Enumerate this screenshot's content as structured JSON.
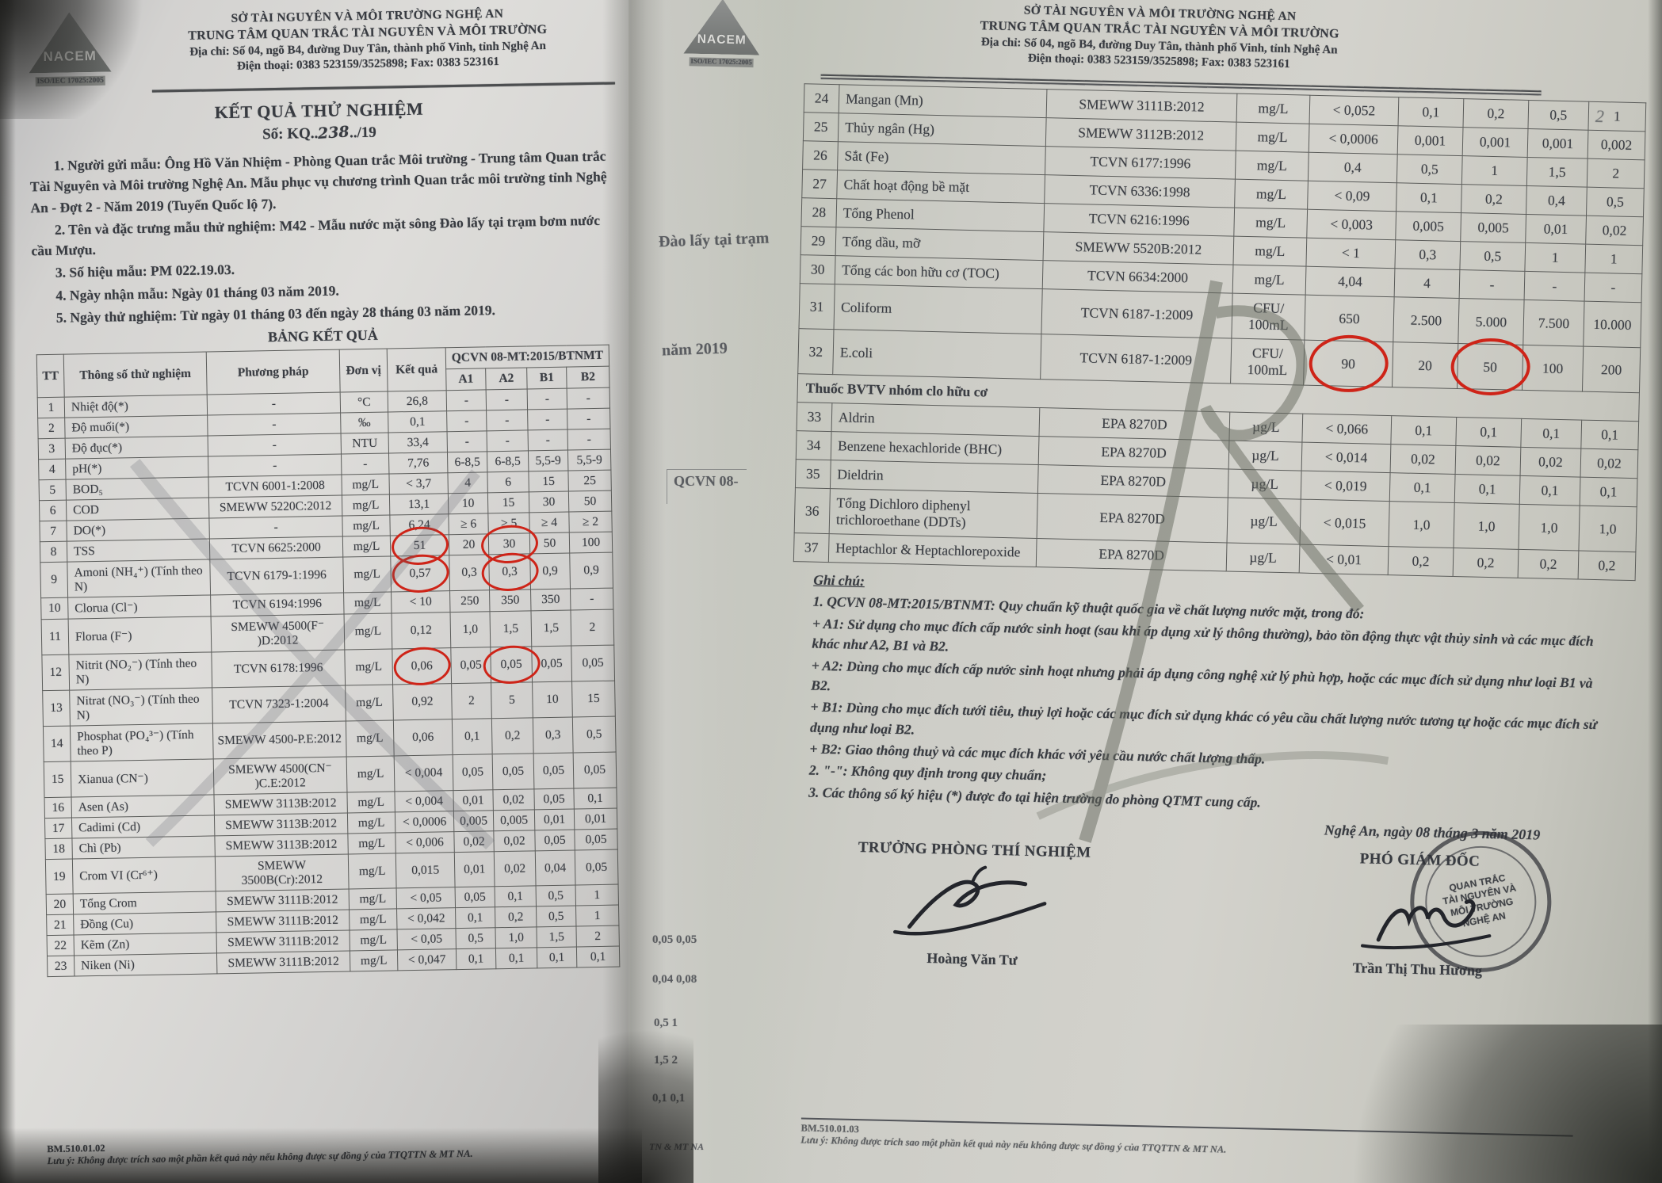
{
  "page_label": "2",
  "left_page": {
    "header": {
      "logo_text": "NACEM",
      "logo_iso": "ISO/IEC 17025:2005",
      "org1": "SỞ TÀI NGUYÊN VÀ MÔI TRƯỜNG NGHỆ AN",
      "org2": "TRUNG TÂM QUAN TRẮC TÀI NGUYÊN VÀ MÔI TRƯỜNG",
      "address": "Địa chỉ: Số 04, ngõ B4, đường Duy Tân, thành phố Vinh, tỉnh Nghệ An",
      "phone": "Điện thoại: 0383 523159/3525898;    Fax: 0383 523161"
    },
    "title": "KẾT QUẢ THỬ NGHIỆM",
    "doc_no": {
      "prefix": "Số: KQ..",
      "hand": "238",
      "suffix": "../19"
    },
    "intro": [
      "1. Người gửi mẫu: Ông Hồ Văn Nhiệm - Phòng Quan trắc Môi trường - Trung tâm Quan trắc Tài Nguyên và Môi trường Nghệ An. Mẫu phục vụ chương trình Quan trắc môi trường tỉnh Nghệ An - Đợt 2 - Năm 2019 (Tuyến Quốc lộ 7).",
      "2. Tên và đặc trưng mẫu thử nghiệm: M42 - Mẫu nước mặt sông Đào lấy tại trạm bơm nước cầu Mượu.",
      "3. Số hiệu mẫu: PM 022.19.03.",
      "4. Ngày nhận mẫu: Ngày 01 tháng 03 năm 2019.",
      "5. Ngày thử nghiệm: Từ ngày 01 tháng 03 đến ngày 28 tháng 03 năm 2019."
    ],
    "table_title": "BẢNG KẾT QUẢ",
    "table": {
      "h": {
        "tt": "TT",
        "p": "Thông số thử nghiệm",
        "m": "Phương pháp",
        "u": "Đơn vị",
        "r": "Kết quả",
        "q": "QCVN 08-MT:2015/BTNMT"
      },
      "subcols": [
        "A1",
        "A2",
        "B1",
        "B2"
      ],
      "rows": [
        {
          "tt": "1",
          "p": "Nhiệt độ(*)",
          "m": "-",
          "u": "°C",
          "r": "26,8",
          "a1": "-",
          "a2": "-",
          "b1": "-",
          "b2": "-"
        },
        {
          "tt": "2",
          "p": "Độ muối(*)",
          "m": "-",
          "u": "‰",
          "r": "0,1",
          "a1": "-",
          "a2": "-",
          "b1": "-",
          "b2": "-"
        },
        {
          "tt": "3",
          "p": "Độ đục(*)",
          "m": "-",
          "u": "NTU",
          "r": "33,4",
          "a1": "-",
          "a2": "-",
          "b1": "-",
          "b2": "-"
        },
        {
          "tt": "4",
          "p": "pH(*)",
          "m": "-",
          "u": "-",
          "r": "7,76",
          "a1": "6-8,5",
          "a2": "6-8,5",
          "b1": "5,5-9",
          "b2": "5,5-9"
        },
        {
          "tt": "5",
          "p": "BOD₅",
          "m": "TCVN 6001-1:2008",
          "u": "mg/L",
          "r": "< 3,7",
          "a1": "4",
          "a2": "6",
          "b1": "15",
          "b2": "25"
        },
        {
          "tt": "6",
          "p": "COD",
          "m": "SMEWW 5220C:2012",
          "u": "mg/L",
          "r": "13,1",
          "a1": "10",
          "a2": "15",
          "b1": "30",
          "b2": "50"
        },
        {
          "tt": "7",
          "p": "DO(*)",
          "m": "-",
          "u": "mg/L",
          "r": "6,24",
          "a1": "≥ 6",
          "a2": "> 5",
          "b1": "≥ 4",
          "b2": "≥ 2"
        },
        {
          "tt": "8",
          "p": "TSS",
          "m": "TCVN 6625:2000",
          "u": "mg/L",
          "r": "51",
          "a1": "20",
          "a2": "30",
          "b1": "50",
          "b2": "100",
          "circle": [
            "r",
            "a2"
          ]
        },
        {
          "tt": "9",
          "p": "Amoni (NH₄⁺) (Tính theo N)",
          "m": "TCVN 6179-1:1996",
          "u": "mg/L",
          "r": "0,57",
          "a1": "0,3",
          "a2": "0,3",
          "b1": "0,9",
          "b2": "0,9",
          "circle": [
            "r",
            "a2"
          ]
        },
        {
          "tt": "10",
          "p": "Clorua (Cl⁻)",
          "m": "TCVN 6194:1996",
          "u": "mg/L",
          "r": "< 10",
          "a1": "250",
          "a2": "350",
          "b1": "350",
          "b2": "-"
        },
        {
          "tt": "11",
          "p": "Florua (F⁻)",
          "m": "SMEWW 4500(F⁻ )D:2012",
          "u": "mg/L",
          "r": "0,12",
          "a1": "1,0",
          "a2": "1,5",
          "b1": "1,5",
          "b2": "2"
        },
        {
          "tt": "12",
          "p": "Nitrit (NO₂⁻) (Tính theo N)",
          "m": "TCVN 6178:1996",
          "u": "mg/L",
          "r": "0,06",
          "a1": "0,05",
          "a2": "0,05",
          "b1": "0,05",
          "b2": "0,05",
          "circle": [
            "r",
            "a2"
          ]
        },
        {
          "tt": "13",
          "p": "Nitrat (NO₃⁻) (Tính theo N)",
          "m": "TCVN 7323-1:2004",
          "u": "mg/L",
          "r": "0,92",
          "a1": "2",
          "a2": "5",
          "b1": "10",
          "b2": "15"
        },
        {
          "tt": "14",
          "p": "Phosphat (PO₄³⁻) (Tính theo P)",
          "m": "SMEWW 4500-P.E:2012",
          "u": "mg/L",
          "r": "0,06",
          "a1": "0,1",
          "a2": "0,2",
          "b1": "0,3",
          "b2": "0,5"
        },
        {
          "tt": "15",
          "p": "Xianua (CN⁻)",
          "m": "SMEWW 4500(CN⁻ )C.E:2012",
          "u": "mg/L",
          "r": "< 0,004",
          "a1": "0,05",
          "a2": "0,05",
          "b1": "0,05",
          "b2": "0,05"
        },
        {
          "tt": "16",
          "p": "Asen (As)",
          "m": "SMEWW 3113B:2012",
          "u": "mg/L",
          "r": "< 0,004",
          "a1": "0,01",
          "a2": "0,02",
          "b1": "0,05",
          "b2": "0,1"
        },
        {
          "tt": "17",
          "p": "Cadimi (Cd)",
          "m": "SMEWW 3113B:2012",
          "u": "mg/L",
          "r": "< 0,0006",
          "a1": "0,005",
          "a2": "0,005",
          "b1": "0,01",
          "b2": "0,01"
        },
        {
          "tt": "18",
          "p": "Chì (Pb)",
          "m": "SMEWW 3113B:2012",
          "u": "mg/L",
          "r": "< 0,006",
          "a1": "0,02",
          "a2": "0,02",
          "b1": "0,05",
          "b2": "0,05"
        },
        {
          "tt": "19",
          "p": "Crom VI (Cr⁶⁺)",
          "m": "SMEWW 3500B(Cr):2012",
          "u": "mg/L",
          "r": "0,015",
          "a1": "0,01",
          "a2": "0,02",
          "b1": "0,04",
          "b2": "0,05"
        },
        {
          "tt": "20",
          "p": "Tổng Crom",
          "m": "SMEWW 3111B:2012",
          "u": "mg/L",
          "r": "< 0,05",
          "a1": "0,05",
          "a2": "0,1",
          "b1": "0,5",
          "b2": "1"
        },
        {
          "tt": "21",
          "p": "Đồng (Cu)",
          "m": "SMEWW 3111B:2012",
          "u": "mg/L",
          "r": "< 0,042",
          "a1": "0,1",
          "a2": "0,2",
          "b1": "0,5",
          "b2": "1"
        },
        {
          "tt": "22",
          "p": "Kẽm (Zn)",
          "m": "SMEWW 3111B:2012",
          "u": "mg/L",
          "r": "< 0,05",
          "a1": "0,5",
          "a2": "1,0",
          "b1": "1,5",
          "b2": "2"
        },
        {
          "tt": "23",
          "p": "Niken (Ni)",
          "m": "SMEWW 3111B:2012",
          "u": "mg/L",
          "r": "< 0,047",
          "a1": "0,1",
          "a2": "0,1",
          "b1": "0,1",
          "b2": "0,1"
        }
      ]
    },
    "footer": {
      "code": "BM.510.01.02",
      "note": "Lưu ý: Không được trích sao một phần kết quả này nếu không được sự đồng ý của TTQTTN & MT NA."
    }
  },
  "right_page": {
    "header": {
      "logo_text": "NACEM",
      "logo_iso": "ISO/IEC 17025:2005",
      "org1": "SỞ TÀI NGUYÊN VÀ MÔI TRƯỜNG NGHỆ AN",
      "org2": "TRUNG TÂM QUAN TRẮC TÀI NGUYÊN VÀ MÔI TRƯỜNG",
      "address": "Địa chỉ: Số 04, ngõ B4, đường Duy Tân, thành phố Vinh, tỉnh Nghệ An",
      "phone": "Điện thoại: 0383 523159/3525898;    Fax: 0383 523161"
    },
    "table": {
      "rows": [
        {
          "tt": "24",
          "p": "Mangan (Mn)",
          "m": "SMEWW 3111B:2012",
          "u": "mg/L",
          "r": "< 0,052",
          "a1": "0,1",
          "a2": "0,2",
          "b1": "0,5",
          "b2": "1"
        },
        {
          "tt": "25",
          "p": "Thủy ngân (Hg)",
          "m": "SMEWW 3112B:2012",
          "u": "mg/L",
          "r": "< 0,0006",
          "a1": "0,001",
          "a2": "0,001",
          "b1": "0,001",
          "b2": "0,002"
        },
        {
          "tt": "26",
          "p": "Sắt (Fe)",
          "m": "TCVN 6177:1996",
          "u": "mg/L",
          "r": "0,4",
          "a1": "0,5",
          "a2": "1",
          "b1": "1,5",
          "b2": "2"
        },
        {
          "tt": "27",
          "p": "Chất hoạt động bề mặt",
          "m": "TCVN 6336:1998",
          "u": "mg/L",
          "r": "< 0,09",
          "a1": "0,1",
          "a2": "0,2",
          "b1": "0,4",
          "b2": "0,5"
        },
        {
          "tt": "28",
          "p": "Tổng Phenol",
          "m": "TCVN 6216:1996",
          "u": "mg/L",
          "r": "< 0,003",
          "a1": "0,005",
          "a2": "0,005",
          "b1": "0,01",
          "b2": "0,02"
        },
        {
          "tt": "29",
          "p": "Tổng dầu, mỡ",
          "m": "SMEWW 5520B:2012",
          "u": "mg/L",
          "r": "< 1",
          "a1": "0,3",
          "a2": "0,5",
          "b1": "1",
          "b2": "1"
        },
        {
          "tt": "30",
          "p": "Tổng các bon hữu cơ (TOC)",
          "m": "TCVN 6634:2000",
          "u": "mg/L",
          "r": "4,04",
          "a1": "4",
          "a2": "-",
          "b1": "-",
          "b2": "-"
        },
        {
          "tt": "31",
          "p": "Coliform",
          "m": "TCVN 6187-1:2009",
          "u": "CFU/ 100mL",
          "r": "650",
          "a1": "2.500",
          "a2": "5.000",
          "b1": "7.500",
          "b2": "10.000"
        },
        {
          "tt": "32",
          "p": "E.coli",
          "m": "TCVN 6187-1:2009",
          "u": "CFU/ 100mL",
          "r": "90",
          "a1": "20",
          "a2": "50",
          "b1": "100",
          "b2": "200",
          "circle": [
            "r",
            "a2"
          ]
        },
        {
          "section": "Thuốc BVTV nhóm clo hữu cơ"
        },
        {
          "tt": "33",
          "p": "Aldrin",
          "m": "EPA 8270D",
          "u": "µg/L",
          "r": "< 0,066",
          "a1": "0,1",
          "a2": "0,1",
          "b1": "0,1",
          "b2": "0,1"
        },
        {
          "tt": "34",
          "p": "Benzene hexachloride (BHC)",
          "m": "EPA 8270D",
          "u": "µg/L",
          "r": "< 0,014",
          "a1": "0,02",
          "a2": "0,02",
          "b1": "0,02",
          "b2": "0,02"
        },
        {
          "tt": "35",
          "p": "Dieldrin",
          "m": "EPA 8270D",
          "u": "µg/L",
          "r": "< 0,019",
          "a1": "0,1",
          "a2": "0,1",
          "b1": "0,1",
          "b2": "0,1"
        },
        {
          "tt": "36",
          "p": "Tổng Dichloro diphenyl trichloroethane (DDTs)",
          "m": "EPA 8270D",
          "u": "µg/L",
          "r": "< 0,015",
          "a1": "1,0",
          "a2": "1,0",
          "b1": "1,0",
          "b2": "1,0"
        },
        {
          "tt": "37",
          "p": "Heptachlor & Heptachlorepoxide",
          "m": "EPA 8270D",
          "u": "µg/L",
          "r": "< 0,01",
          "a1": "0,2",
          "a2": "0,2",
          "b1": "0,2",
          "b2": "0,2"
        }
      ]
    },
    "notes": [
      "Ghi chú:",
      "1. QCVN 08-MT:2015/BTNMT: Quy chuẩn kỹ thuật quốc gia về chất lượng nước mặt, trong đó:",
      "+ A1: Sử dụng cho mục đích cấp nước sinh hoạt (sau khi áp dụng xử lý thông thường), bảo tồn động thực vật thủy sinh và các mục đích khác như A2, B1 và B2.",
      "+ A2: Dùng cho mục đích cấp nước sinh hoạt nhưng phải áp dụng công nghệ xử lý phù hợp, hoặc các mục đích sử dụng như loại B1 và B2.",
      "+ B1: Dùng cho mục đích tưới tiêu, thuỷ lợi hoặc các mục đích sử dụng khác có yêu cầu chất lượng nước tương tự hoặc các mục đích sử dụng như loại B2.",
      "+ B2: Giao thông thuỷ và các mục đích khác với yêu cầu nước chất lượng thấp.",
      "2. \"-\": Không quy định trong quy chuẩn;",
      "3. Các thông số ký hiệu (*) được đo tại hiện trường do phòng QTMT cung cấp."
    ],
    "sign": {
      "date_line": "Nghệ An, ngày 08 tháng 3 năm 2019",
      "left_title": "TRƯỞNG PHÒNG THÍ NGHIỆM",
      "left_name": "Hoàng Văn Tư",
      "right_title": "PHÓ GIÁM ĐỐC",
      "right_name": "Trần Thị Thu Hương",
      "stamp_lines": [
        "QUAN TRẮC",
        "TÀI NGUYÊN VÀ",
        "MÔI TRƯỜNG",
        "NGHỆ AN"
      ]
    },
    "footer": {
      "code": "BM.510.01.03",
      "note": "Lưu ý: Không được trích sao một phần kết quả này nếu không được sự đồng ý của TTQTTN & MT NA."
    }
  },
  "gap_fragments": {
    "f1": "Đào lấy tại trạm",
    "f2": "năm 2019",
    "f3": "QCVN 08-",
    "f4": "0,05   0,05",
    "f5": "0,04   0,08",
    "f6": "0,5      1",
    "f7": "1,5      2",
    "f8": "0,1     0,1",
    "f9": "TN & MT NA"
  }
}
